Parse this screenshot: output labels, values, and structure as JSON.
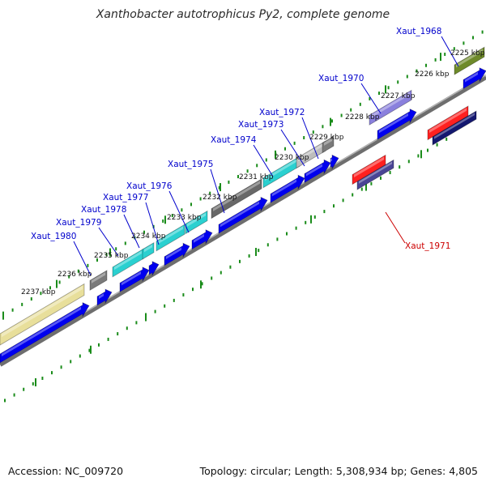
{
  "title": "Xanthobacter autotrophicus Py2, complete genome",
  "accession_text": "Accession: NC_009720",
  "topology_text": "Topology: circular; Length: 5,308,934 bp; Genes: 4,805",
  "colors": {
    "backbone": "#8c8c8c",
    "ticks": "#1a8c1a",
    "forward_label": "#0000cc",
    "reverse_label": "#cc0000",
    "cds": "#0000ee"
  },
  "scale_labels": [
    "2225 kbp",
    "2226 kbp",
    "2227 kbp",
    "2228 kbp",
    "2229 kbp",
    "2230 kbp",
    "2231 kbp",
    "2232 kbp",
    "2233 kbp",
    "2234 kbp",
    "2235 kbp",
    "2236 kbp",
    "2237 kbp"
  ],
  "gene_labels": [
    {
      "text": "Xaut_1968",
      "strand": "forward"
    },
    {
      "text": "Xaut_1970",
      "strand": "forward"
    },
    {
      "text": "Xaut_1972",
      "strand": "forward"
    },
    {
      "text": "Xaut_1973",
      "strand": "forward"
    },
    {
      "text": "Xaut_1974",
      "strand": "forward"
    },
    {
      "text": "Xaut_1975",
      "strand": "forward"
    },
    {
      "text": "Xaut_1976",
      "strand": "forward"
    },
    {
      "text": "Xaut_1977",
      "strand": "forward"
    },
    {
      "text": "Xaut_1978",
      "strand": "forward"
    },
    {
      "text": "Xaut_1979",
      "strand": "forward"
    },
    {
      "text": "Xaut_1980",
      "strand": "forward"
    },
    {
      "text": "Xaut_1971",
      "strand": "reverse"
    }
  ]
}
